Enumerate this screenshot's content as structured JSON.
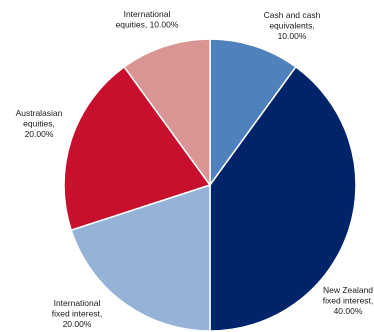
{
  "chart_data": {
    "type": "pie",
    "start_angle_deg": 0,
    "direction": "clockwise",
    "slices": [
      {
        "label_lines": [
          "Cash and cash",
          "equivalents,",
          "10.00%"
        ],
        "value": 10.0,
        "color": "#4f81bd"
      },
      {
        "label_lines": [
          "New Zealand",
          "fixed interest,",
          "40.00%"
        ],
        "value": 40.0,
        "color": "#002469"
      },
      {
        "label_lines": [
          "International",
          "fixed interest,",
          "20.00%"
        ],
        "value": 20.0,
        "color": "#95b3d7"
      },
      {
        "label_lines": [
          "Australasian",
          "equities,",
          "20.00%"
        ],
        "value": 20.0,
        "color": "#c8102e"
      },
      {
        "label_lines": [
          "International",
          "equities, 10.00%"
        ],
        "value": 10.0,
        "color": "#d99594"
      }
    ]
  }
}
